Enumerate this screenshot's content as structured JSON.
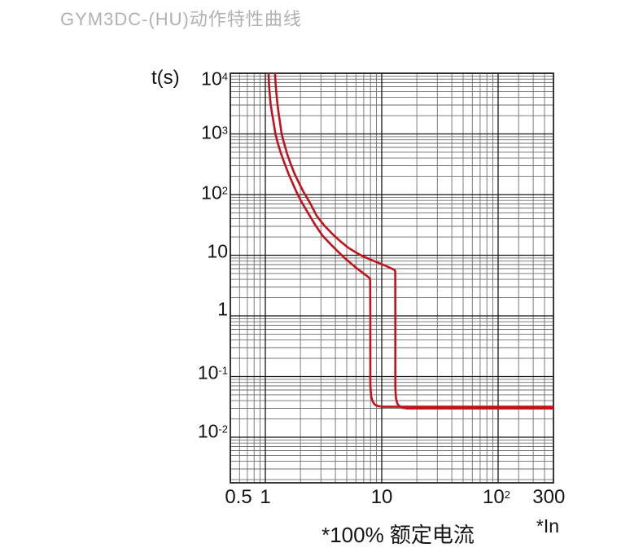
{
  "title": "GYM3DC-(HU)动作特性曲线",
  "colors": {
    "background": "#ffffff",
    "title_text": "#b1b1b1",
    "axis_text": "#141414",
    "grid_minor": "#6e6e6e",
    "grid_major": "#161616",
    "plot_border": "#161616",
    "curve_red": "#c3121e"
  },
  "chart_data": {
    "type": "line",
    "title": "GYM3DC-(HU)动作特性曲线",
    "x_axis": {
      "caption": "*100% 额定电流",
      "unit_label": "*In",
      "scale": "log",
      "range": [
        0.5,
        300
      ],
      "ticks": [
        {
          "base": "0.5",
          "exp": ""
        },
        {
          "base": "1",
          "exp": ""
        },
        {
          "base": "10",
          "exp": ""
        },
        {
          "base": "10",
          "exp": "2"
        },
        {
          "base": "300",
          "exp": ""
        }
      ],
      "tick_values": [
        0.5,
        1,
        10,
        100,
        300
      ]
    },
    "y_axis": {
      "title": "t(s)",
      "scale": "log",
      "range": [
        0.0018,
        10000
      ],
      "ticks": [
        {
          "base": "10",
          "exp": "4"
        },
        {
          "base": "10",
          "exp": "3"
        },
        {
          "base": "10",
          "exp": "2"
        },
        {
          "base": "10",
          "exp": ""
        },
        {
          "base": "1",
          "exp": ""
        },
        {
          "base": "10",
          "exp": "-1"
        },
        {
          "base": "10",
          "exp": "-2"
        }
      ],
      "tick_values": [
        10000,
        1000,
        100,
        10,
        1,
        0.1,
        0.01
      ]
    },
    "grid": {
      "x_major": [
        1,
        10,
        100
      ],
      "x_minor": [
        0.6,
        0.7,
        0.8,
        0.9,
        2,
        3,
        4,
        5,
        6,
        7,
        8,
        9,
        20,
        30,
        40,
        50,
        60,
        70,
        80,
        90,
        150,
        200,
        250
      ],
      "y_major": [
        10000,
        1000,
        100,
        10,
        1,
        0.1,
        0.01
      ],
      "y_minor": [
        9000,
        8000,
        7000,
        6000,
        5000,
        4000,
        3000,
        2000,
        900,
        800,
        700,
        600,
        500,
        400,
        300,
        200,
        90,
        80,
        70,
        60,
        50,
        40,
        30,
        20,
        9,
        8,
        7,
        6,
        5,
        4,
        3,
        2,
        0.9,
        0.8,
        0.7,
        0.6,
        0.5,
        0.4,
        0.3,
        0.2,
        0.09,
        0.08,
        0.07,
        0.06,
        0.05,
        0.04,
        0.03,
        0.02,
        0.009,
        0.008,
        0.007,
        0.006,
        0.005,
        0.004,
        0.003,
        0.002
      ]
    },
    "legend": "none",
    "key_features": {
      "description": "Two red time-current trip limit curves: inverse-time (thermal) region starting near 1.05×In and 1.2×In at 10^4 s, instantaneous trip verticals at about 8×In and 13×In, final clearing time flat at about 0.03 s out to 300×In.",
      "left_curve_instantaneous_multiple": 8,
      "right_curve_instantaneous_multiple": 13,
      "flat_trip_time_s": 0.03
    },
    "series": [
      {
        "name": "trip-curve-lower-limit",
        "color": "#c3121e",
        "points": [
          [
            1.065,
            10000
          ],
          [
            1.075,
            6500
          ],
          [
            1.09,
            4500
          ],
          [
            1.11,
            3100
          ],
          [
            1.14,
            2200
          ],
          [
            1.175,
            1550
          ],
          [
            1.22,
            1000
          ],
          [
            1.28,
            700
          ],
          [
            1.36,
            480
          ],
          [
            1.46,
            330
          ],
          [
            1.58,
            220
          ],
          [
            1.7,
            160
          ],
          [
            1.85,
            110
          ],
          [
            2.05,
            75
          ],
          [
            2.4,
            45
          ],
          [
            2.7,
            31
          ],
          [
            3.1,
            21
          ],
          [
            3.6,
            15.5
          ],
          [
            4.2,
            11.5
          ],
          [
            4.8,
            9.0
          ],
          [
            5.5,
            7.2
          ],
          [
            6.1,
            6.1
          ],
          [
            6.8,
            5.2
          ],
          [
            7.4,
            4.6
          ],
          [
            7.8,
            4.25
          ],
          [
            7.95,
            4.0
          ],
          [
            7.97,
            1.0
          ],
          [
            7.97,
            0.2
          ],
          [
            7.97,
            0.07
          ],
          [
            8.1,
            0.047
          ],
          [
            8.35,
            0.039
          ],
          [
            8.7,
            0.0345
          ],
          [
            9.3,
            0.0326
          ],
          [
            10.2,
            0.0318
          ],
          [
            300,
            0.0318
          ]
        ]
      },
      {
        "name": "trip-curve-upper-limit",
        "color": "#c3121e",
        "points": [
          [
            1.21,
            10000
          ],
          [
            1.225,
            6500
          ],
          [
            1.245,
            4500
          ],
          [
            1.27,
            3100
          ],
          [
            1.3,
            2200
          ],
          [
            1.335,
            1550
          ],
          [
            1.38,
            1000
          ],
          [
            1.45,
            700
          ],
          [
            1.53,
            480
          ],
          [
            1.64,
            330
          ],
          [
            1.78,
            220
          ],
          [
            1.93,
            160
          ],
          [
            2.13,
            110
          ],
          [
            2.4,
            75
          ],
          [
            2.75,
            45
          ],
          [
            3.2,
            31
          ],
          [
            3.8,
            22
          ],
          [
            4.4,
            17
          ],
          [
            5.1,
            13.5
          ],
          [
            5.9,
            11.3
          ],
          [
            6.8,
            9.7
          ],
          [
            7.9,
            8.6
          ],
          [
            9.2,
            7.6
          ],
          [
            10.6,
            6.8
          ],
          [
            12.0,
            6.1
          ],
          [
            12.9,
            5.7
          ],
          [
            13.05,
            5.4
          ],
          [
            13.08,
            1.0
          ],
          [
            13.08,
            0.2
          ],
          [
            13.08,
            0.065
          ],
          [
            13.25,
            0.044
          ],
          [
            13.6,
            0.036
          ],
          [
            14.2,
            0.0322
          ],
          [
            15.2,
            0.0304
          ],
          [
            16.5,
            0.0298
          ],
          [
            300,
            0.0298
          ]
        ]
      }
    ]
  }
}
